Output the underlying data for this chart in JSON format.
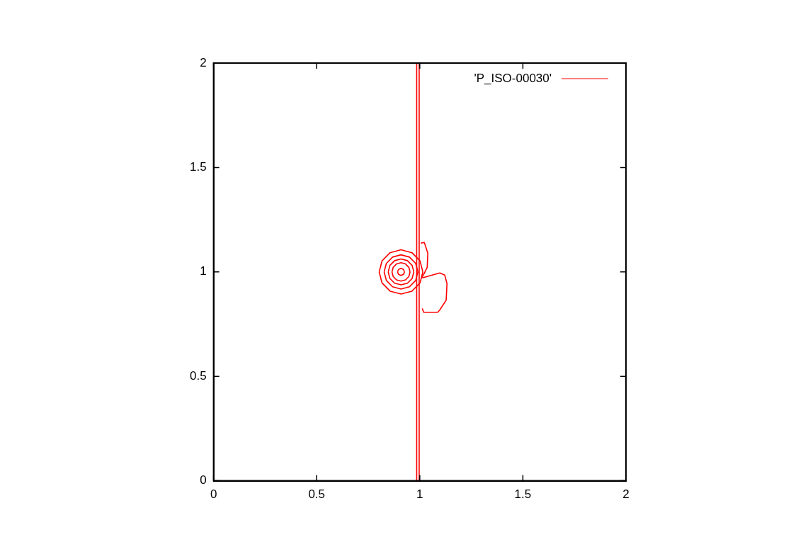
{
  "chart_data": {
    "type": "line",
    "xlim": [
      0,
      2
    ],
    "ylim": [
      0,
      2
    ],
    "xticks": [
      0,
      0.5,
      1,
      1.5,
      2
    ],
    "yticks": [
      0,
      0.5,
      1,
      1.5,
      2
    ],
    "grid": false,
    "legend": "top right",
    "marker": "none",
    "line_style": "solid",
    "series": [
      {
        "name": "'P_ISO-00030'",
        "color": "#ff0000",
        "x": [
          0.985,
          0.985
        ],
        "values": [
          0,
          2
        ]
      },
      {
        "color": "#ff0000",
        "x": [
          0.997,
          0.997
        ],
        "values": [
          0,
          2
        ]
      },
      {
        "color": "#ff0000",
        "x": [
          1.005,
          1.022,
          1.039,
          1.036,
          1.019,
          1.009
        ],
        "values": [
          1.138,
          1.141,
          1.09,
          1.022,
          0.988,
          0.971
        ]
      },
      {
        "color": "#ff0000",
        "x": [
          1.012,
          1.097,
          1.121,
          1.132,
          1.128,
          1.097,
          1.087,
          1.019,
          1.012
        ],
        "values": [
          0.971,
          0.995,
          0.985,
          0.944,
          0.865,
          0.818,
          0.807,
          0.807,
          0.825
        ]
      },
      {
        "color": "#ff0000",
        "x": [
          0.803,
          0.817,
          0.856,
          0.909,
          0.962,
          1.001,
          1.015
        ],
        "values": [
          1,
          1.053,
          1.092,
          1.106,
          1.092,
          1.053,
          1
        ]
      },
      {
        "color": "#ff0000",
        "x": [
          0.803,
          0.817,
          0.856,
          0.909,
          0.962,
          1.001,
          1.015
        ],
        "values": [
          1,
          0.947,
          0.908,
          0.894,
          0.908,
          0.947,
          1
        ]
      },
      {
        "color": "#ff0000",
        "x": [
          0.827,
          0.838,
          0.868,
          0.909,
          0.95,
          0.98,
          0.991
        ],
        "values": [
          1,
          1.041,
          1.071,
          1.082,
          1.071,
          1.041,
          1
        ]
      },
      {
        "color": "#ff0000",
        "x": [
          0.827,
          0.838,
          0.868,
          0.909,
          0.95,
          0.98,
          0.991
        ],
        "values": [
          1,
          0.959,
          0.929,
          0.918,
          0.929,
          0.959,
          1
        ]
      },
      {
        "color": "#ff0000",
        "x": [
          0.847,
          0.855,
          0.878,
          0.909,
          0.94,
          0.963,
          0.971
        ],
        "values": [
          1,
          1.031,
          1.054,
          1.062,
          1.054,
          1.031,
          1
        ]
      },
      {
        "color": "#ff0000",
        "x": [
          0.847,
          0.855,
          0.878,
          0.909,
          0.94,
          0.963,
          0.971
        ],
        "values": [
          1,
          0.969,
          0.946,
          0.938,
          0.946,
          0.969,
          1
        ]
      },
      {
        "color": "#ff0000",
        "x": [
          0.865,
          0.871,
          0.887,
          0.909,
          0.931,
          0.947,
          0.953
        ],
        "values": [
          1,
          1.022,
          1.038,
          1.044,
          1.038,
          1.022,
          1
        ]
      },
      {
        "color": "#ff0000",
        "x": [
          0.865,
          0.871,
          0.887,
          0.909,
          0.931,
          0.947,
          0.953
        ],
        "values": [
          1,
          0.978,
          0.962,
          0.956,
          0.962,
          0.978,
          1
        ]
      },
      {
        "color": "#ff0000",
        "x": [
          0.892,
          0.897,
          0.909,
          0.921,
          0.926
        ],
        "values": [
          1,
          1.012,
          1.017,
          1.012,
          1
        ]
      },
      {
        "color": "#ff0000",
        "x": [
          0.892,
          0.897,
          0.909,
          0.921,
          0.926
        ],
        "values": [
          1,
          0.988,
          0.983,
          0.988,
          1
        ]
      }
    ]
  }
}
